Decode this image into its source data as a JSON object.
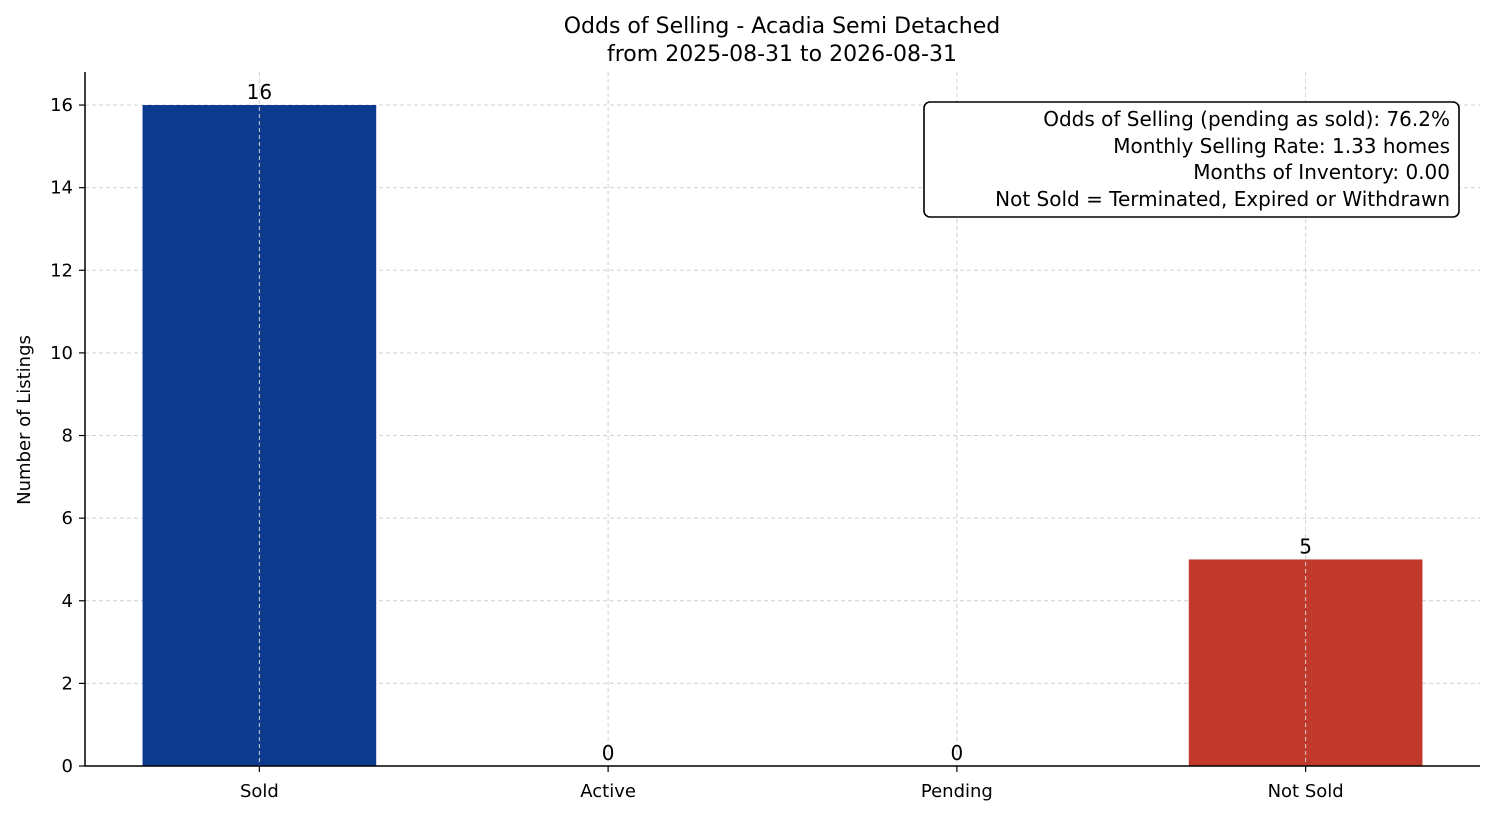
{
  "chart_data": {
    "type": "bar",
    "title": "Odds of Selling - Acadia Semi Detached",
    "subtitle": "from 2025-08-31 to 2026-08-31",
    "xlabel": "",
    "ylabel": "Number of Listings",
    "categories": [
      "Sold",
      "Active",
      "Pending",
      "Not Sold"
    ],
    "values": [
      16,
      0,
      0,
      5
    ],
    "data_labels": [
      "16",
      "0",
      "0",
      "5"
    ],
    "colors": [
      "#0b3a8f",
      "#0b3a8f",
      "#0b3a8f",
      "#c0392b"
    ],
    "ylim": [
      0,
      16.8
    ],
    "yticks": [
      0,
      2,
      4,
      6,
      8,
      10,
      12,
      14,
      16
    ],
    "grid": true,
    "annotation_lines": [
      "Odds of Selling (pending as sold): 76.2%",
      "Monthly Selling Rate: 1.33 homes",
      "Months of Inventory: 0.00",
      "Not Sold = Terminated, Expired or Withdrawn"
    ],
    "annotation_position": "top-right"
  }
}
